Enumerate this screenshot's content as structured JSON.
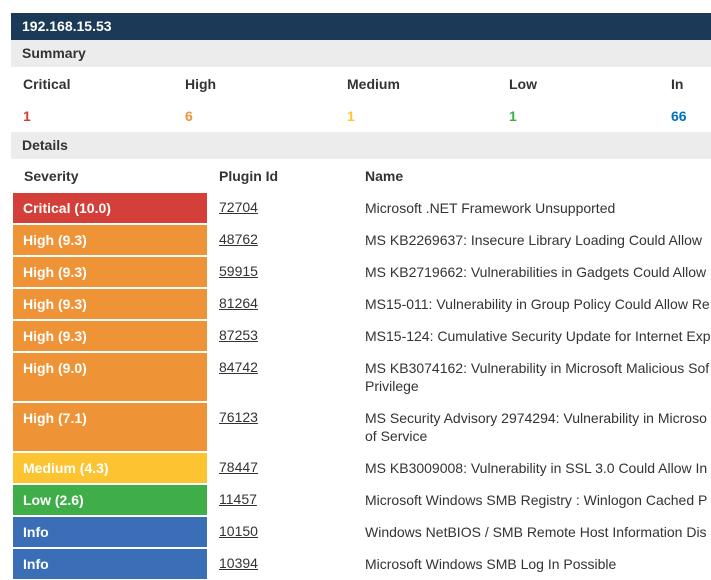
{
  "host": "192.168.15.53",
  "summary": {
    "title": "Summary",
    "columns": [
      {
        "label": "Critical",
        "count": "1",
        "color": "#d43f3a"
      },
      {
        "label": "High",
        "count": "6",
        "color": "#ee9336"
      },
      {
        "label": "Medium",
        "count": "1",
        "color": "#fdc431"
      },
      {
        "label": "Low",
        "count": "1",
        "color": "#3fae49"
      },
      {
        "label": "In",
        "count": "66",
        "color": "#0071b9"
      }
    ]
  },
  "details": {
    "title": "Details",
    "headers": {
      "severity": "Severity",
      "plugin": "Plugin Id",
      "name": "Name"
    },
    "rows": [
      {
        "severity": "Critical (10.0)",
        "color": "#d43f3a",
        "plugin": "72704",
        "name": "Microsoft .NET Framework Unsupported",
        "name2": ""
      },
      {
        "severity": "High (9.3)",
        "color": "#ee9336",
        "plugin": "48762",
        "name": "MS KB2269637: Insecure Library Loading Could Allow",
        "name2": ""
      },
      {
        "severity": "High (9.3)",
        "color": "#ee9336",
        "plugin": "59915",
        "name": "MS KB2719662: Vulnerabilities in Gadgets Could Allow",
        "name2": ""
      },
      {
        "severity": "High (9.3)",
        "color": "#ee9336",
        "plugin": "81264",
        "name": "MS15-011: Vulnerability in Group Policy Could Allow Re",
        "name2": ""
      },
      {
        "severity": "High (9.3)",
        "color": "#ee9336",
        "plugin": "87253",
        "name": "MS15-124: Cumulative Security Update for Internet Exp",
        "name2": ""
      },
      {
        "severity": "High (9.0)",
        "color": "#ee9336",
        "plugin": "84742",
        "name": "MS KB3074162: Vulnerability in Microsoft Malicious Sof",
        "name2": "Privilege"
      },
      {
        "severity": "High (7.1)",
        "color": "#ee9336",
        "plugin": "76123",
        "name": "MS Security Advisory 2974294: Vulnerability in Microso",
        "name2": "of Service"
      },
      {
        "severity": "Medium (4.3)",
        "color": "#fdc431",
        "plugin": "78447",
        "name": "MS KB3009008: Vulnerability in SSL 3.0 Could Allow In",
        "name2": ""
      },
      {
        "severity": "Low (2.6)",
        "color": "#3fae49",
        "plugin": "11457",
        "name": "Microsoft Windows SMB Registry : Winlogon Cached P",
        "name2": ""
      },
      {
        "severity": "Info",
        "color": "#3a6fb7",
        "plugin": "10150",
        "name": "Windows NetBIOS / SMB Remote Host Information Dis",
        "name2": ""
      },
      {
        "severity": "Info",
        "color": "#3a6fb7",
        "plugin": "10394",
        "name": "Microsoft Windows SMB Log In Possible",
        "name2": ""
      }
    ]
  }
}
